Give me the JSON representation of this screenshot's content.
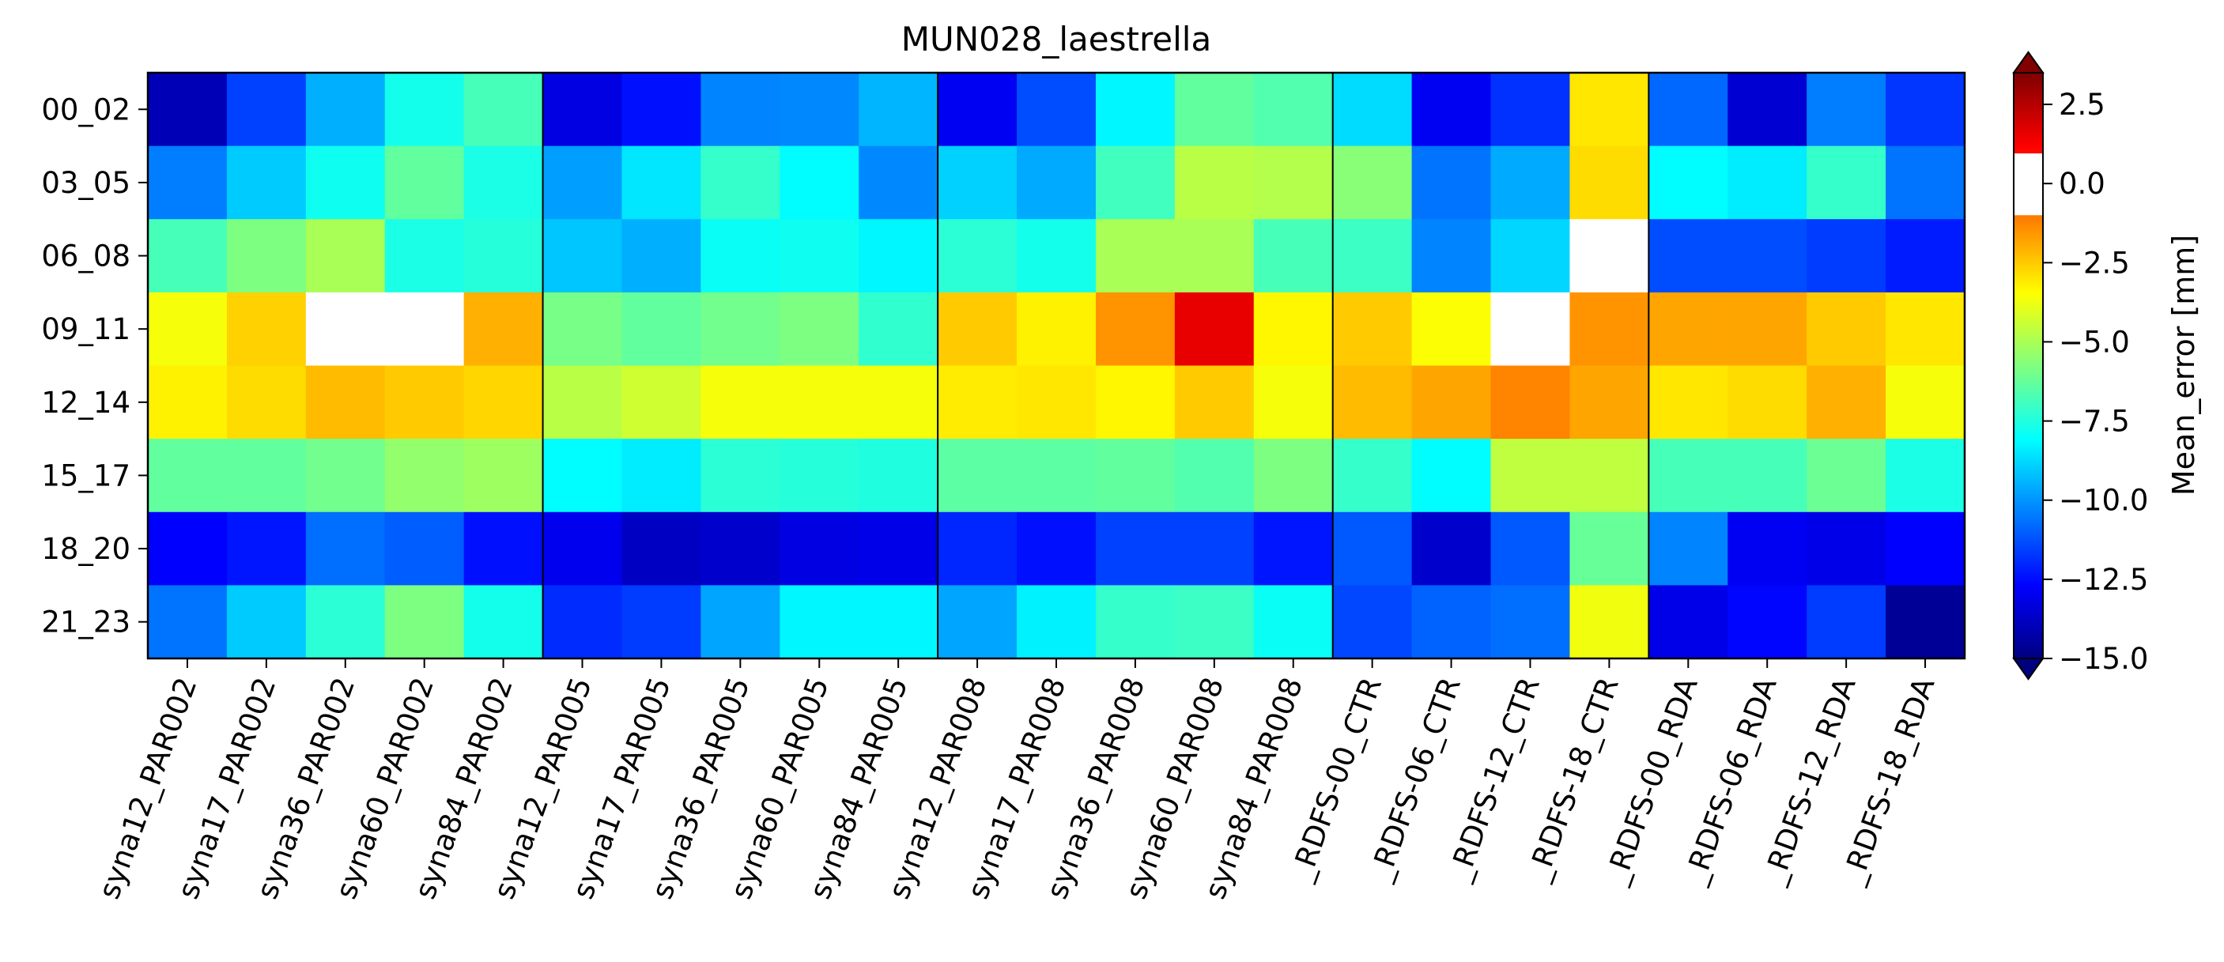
{
  "chart_data": {
    "type": "heatmap",
    "title": "MUN028_laestrella",
    "colorbar": {
      "label": "Mean_error [mm]",
      "ticks": [
        2.5,
        0.0,
        -2.5,
        -5.0,
        -7.5,
        -10.0,
        -12.5,
        -15.0
      ],
      "tick_labels": [
        "2.5",
        "0.0",
        "−2.5",
        "−5.0",
        "−7.5",
        "−10.0",
        "−12.5",
        "−15.0"
      ],
      "range": [
        -15.0,
        3.5
      ],
      "colormap": "jet",
      "extend": "both",
      "white_band": [
        -1.0,
        1.0
      ],
      "over_color": "#800000",
      "under_color": "#00007f"
    },
    "rows": [
      "00_02",
      "03_05",
      "06_08",
      "09_11",
      "12_14",
      "15_17",
      "18_20",
      "21_23"
    ],
    "columns": [
      "syna12_PAR002",
      "syna17_PAR002",
      "syna36_PAR002",
      "syna60_PAR002",
      "syna84_PAR002",
      "syna12_PAR005",
      "syna17_PAR005",
      "syna36_PAR005",
      "syna60_PAR005",
      "syna84_PAR005",
      "syna12_PAR008",
      "syna17_PAR008",
      "syna36_PAR008",
      "syna60_PAR008",
      "syna84_PAR008",
      "_RDFS-00_CTR",
      "_RDFS-06_CTR",
      "_RDFS-12_CTR",
      "_RDFS-18_CTR",
      "_RDFS-00_RDA",
      "_RDFS-06_RDA",
      "_RDFS-12_RDA",
      "_RDFS-18_RDA"
    ],
    "group_separators_after_column": [
      4,
      9,
      14,
      18
    ],
    "values": [
      [
        -14.0,
        -11.5,
        -9.5,
        -7.7,
        -6.8,
        -13.2,
        -12.4,
        -10.3,
        -10.2,
        -9.4,
        -12.9,
        -11.3,
        -8.2,
        -6.3,
        -6.6,
        -8.7,
        -12.9,
        -11.8,
        -3.0,
        -10.8,
        -13.5,
        -10.4,
        -11.7
      ],
      [
        -10.4,
        -9.0,
        -7.8,
        -6.3,
        -7.6,
        -9.8,
        -8.5,
        -7.1,
        -8.1,
        -10.2,
        -8.9,
        -9.6,
        -6.9,
        -4.7,
        -4.8,
        -5.6,
        -10.6,
        -9.6,
        -2.8,
        -8.1,
        -8.4,
        -7.1,
        -10.6
      ],
      [
        -6.8,
        -5.8,
        -5.0,
        -7.6,
        -7.4,
        -9.1,
        -9.5,
        -7.9,
        -7.8,
        -8.2,
        -7.3,
        -7.7,
        -5.0,
        -5.0,
        -6.8,
        -7.0,
        -10.3,
        -8.8,
        0.0,
        -11.3,
        -11.3,
        -11.6,
        -12.2
      ],
      [
        -3.6,
        -2.6,
        0.0,
        0.0,
        -2.0,
        -5.9,
        -6.3,
        -6.0,
        -5.8,
        -7.2,
        -2.5,
        -3.2,
        -1.5,
        1.6,
        -3.3,
        -2.5,
        -3.5,
        0.0,
        -1.5,
        -1.8,
        -1.8,
        -2.5,
        -3.0
      ],
      [
        -3.2,
        -2.8,
        -2.2,
        -2.5,
        -2.7,
        -4.7,
        -4.3,
        -3.6,
        -3.6,
        -3.6,
        -3.1,
        -3.0,
        -3.3,
        -2.5,
        -3.6,
        -2.2,
        -1.8,
        -1.2,
        -1.8,
        -3.0,
        -2.8,
        -2.0,
        -3.6
      ],
      [
        -6.3,
        -6.3,
        -6.0,
        -5.4,
        -5.2,
        -8.1,
        -8.4,
        -7.3,
        -7.4,
        -7.5,
        -6.4,
        -6.4,
        -6.3,
        -6.6,
        -5.8,
        -7.1,
        -8.1,
        -4.6,
        -4.6,
        -6.8,
        -6.8,
        -6.1,
        -7.6
      ],
      [
        -12.7,
        -12.3,
        -10.7,
        -11.0,
        -12.4,
        -13.0,
        -13.8,
        -13.6,
        -13.2,
        -13.1,
        -12.0,
        -12.4,
        -11.5,
        -11.5,
        -12.3,
        -11.1,
        -13.6,
        -11.1,
        -6.2,
        -10.3,
        -12.9,
        -13.1,
        -12.7
      ],
      [
        -10.6,
        -9.0,
        -7.3,
        -5.8,
        -7.7,
        -11.9,
        -11.6,
        -9.7,
        -8.2,
        -8.2,
        -9.7,
        -8.3,
        -7.1,
        -7.0,
        -7.9,
        -11.4,
        -10.9,
        -10.7,
        -3.7,
        -13.1,
        -12.6,
        -11.6,
        -14.6
      ]
    ]
  }
}
